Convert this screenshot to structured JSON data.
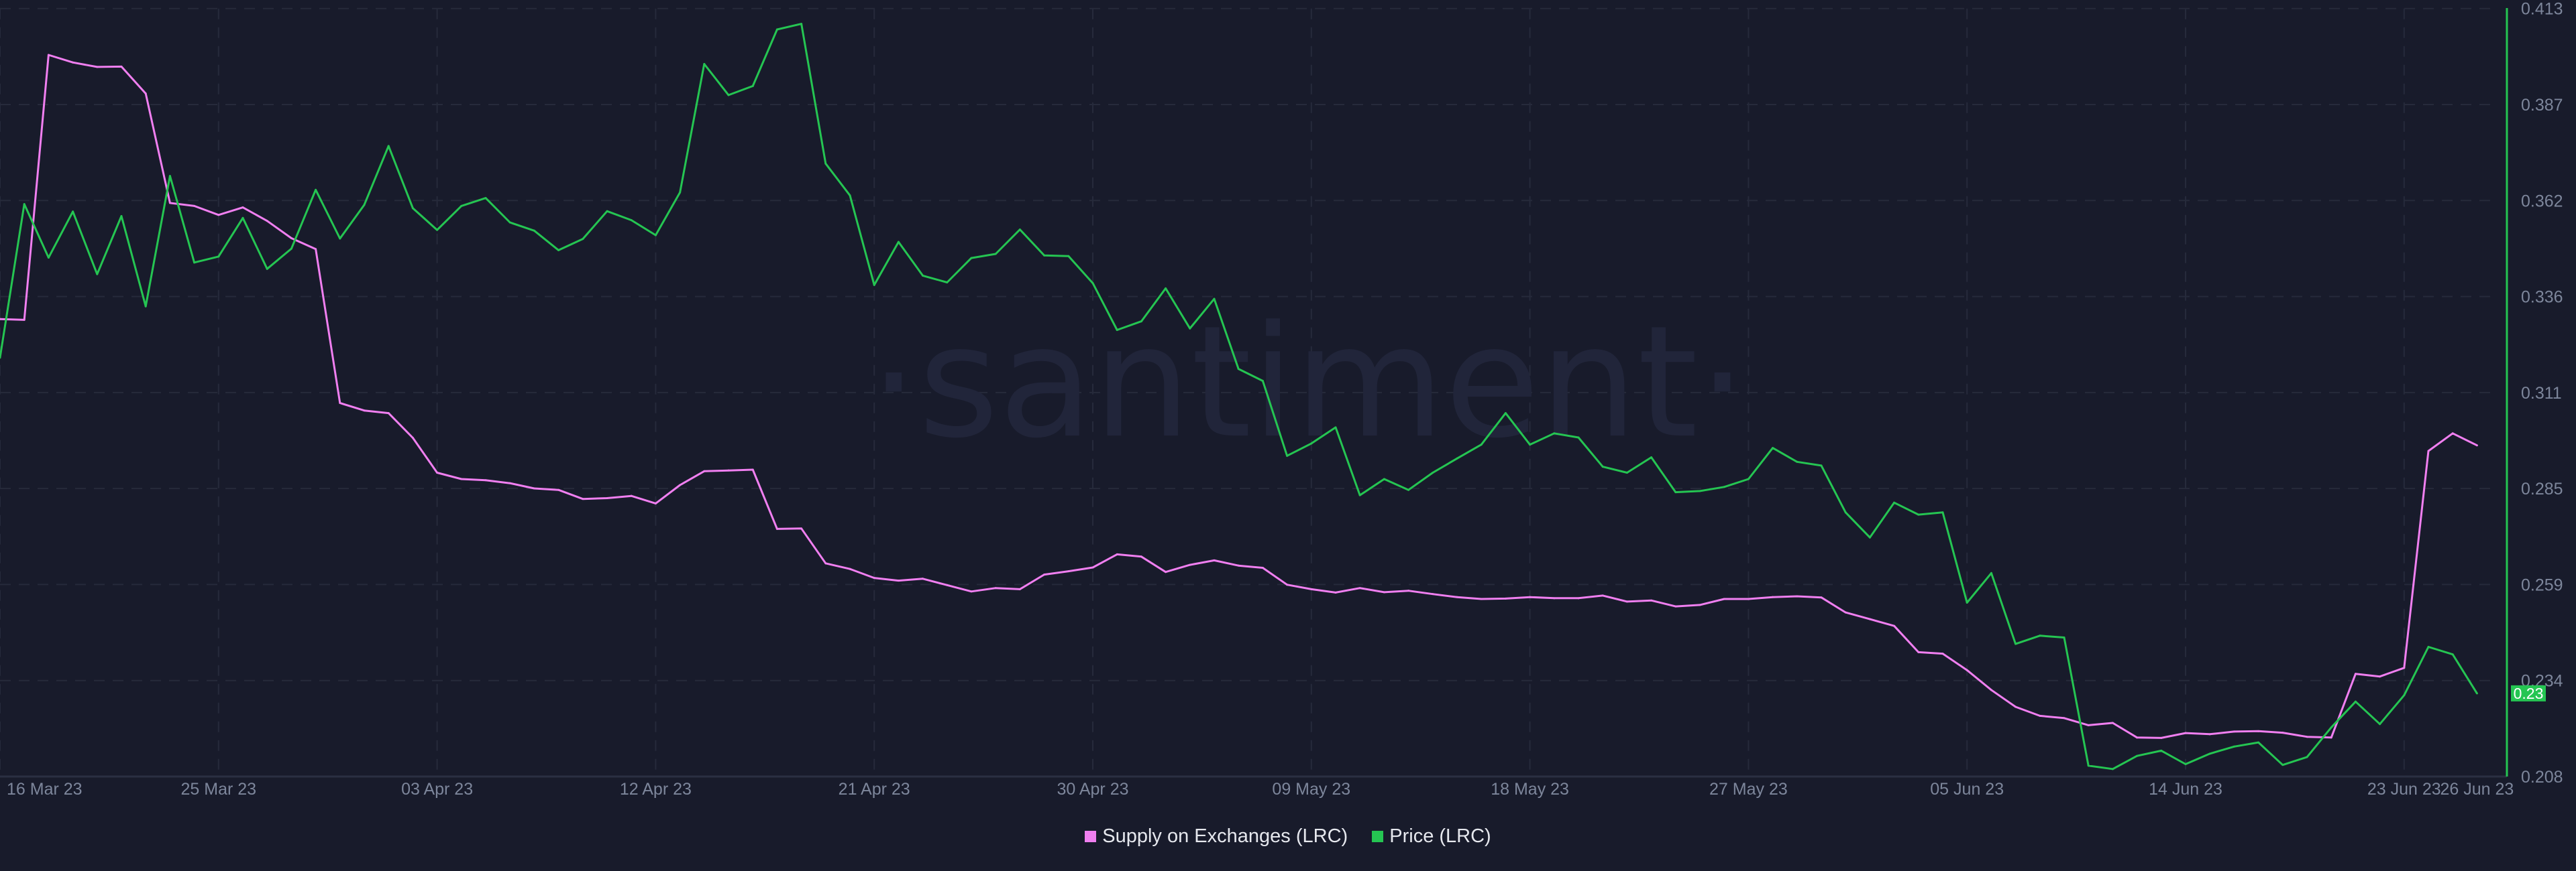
{
  "watermark": "·santiment·",
  "legend": [
    {
      "label": "Supply on Exchanges (LRC)",
      "color": "#f07ff0"
    },
    {
      "label": "Price (LRC)",
      "color": "#25c552"
    }
  ],
  "price_tag": "0.23",
  "chart_data": {
    "type": "line",
    "title": "",
    "xlabel": "",
    "ylabel": "",
    "ylim": [
      0.208,
      0.413
    ],
    "y_ticks": [
      "0.413",
      "0.387",
      "0.362",
      "0.336",
      "0.311",
      "0.285",
      "0.259",
      "0.234",
      "0.208"
    ],
    "x_ticks": [
      "16 Mar 23",
      "25 Mar 23",
      "03 Apr 23",
      "12 Apr 23",
      "21 Apr 23",
      "30 Apr 23",
      "09 May 23",
      "18 May 23",
      "27 May 23",
      "05 Jun 23",
      "14 Jun 23",
      "23 Jun 23",
      "26 Jun 23"
    ],
    "grid": true,
    "legend_position": "bottom",
    "x": [
      "2023-03-16",
      "2023-03-17",
      "2023-03-18",
      "2023-03-19",
      "2023-03-20",
      "2023-03-21",
      "2023-03-22",
      "2023-03-23",
      "2023-03-24",
      "2023-03-25",
      "2023-03-26",
      "2023-03-27",
      "2023-03-28",
      "2023-03-29",
      "2023-03-30",
      "2023-03-31",
      "2023-04-01",
      "2023-04-02",
      "2023-04-03",
      "2023-04-04",
      "2023-04-05",
      "2023-04-06",
      "2023-04-07",
      "2023-04-08",
      "2023-04-09",
      "2023-04-10",
      "2023-04-11",
      "2023-04-12",
      "2023-04-13",
      "2023-04-14",
      "2023-04-15",
      "2023-04-16",
      "2023-04-17",
      "2023-04-18",
      "2023-04-19",
      "2023-04-20",
      "2023-04-21",
      "2023-04-22",
      "2023-04-23",
      "2023-04-24",
      "2023-04-25",
      "2023-04-26",
      "2023-04-27",
      "2023-04-28",
      "2023-04-29",
      "2023-04-30",
      "2023-05-01",
      "2023-05-02",
      "2023-05-03",
      "2023-05-04",
      "2023-05-05",
      "2023-05-06",
      "2023-05-07",
      "2023-05-08",
      "2023-05-09",
      "2023-05-10",
      "2023-05-11",
      "2023-05-12",
      "2023-05-13",
      "2023-05-14",
      "2023-05-15",
      "2023-05-16",
      "2023-05-17",
      "2023-05-18",
      "2023-05-19",
      "2023-05-20",
      "2023-05-21",
      "2023-05-22",
      "2023-05-23",
      "2023-05-24",
      "2023-05-25",
      "2023-05-26",
      "2023-05-27",
      "2023-05-28",
      "2023-05-29",
      "2023-05-30",
      "2023-05-31",
      "2023-06-01",
      "2023-06-02",
      "2023-06-03",
      "2023-06-04",
      "2023-06-05",
      "2023-06-06",
      "2023-06-07",
      "2023-06-08",
      "2023-06-09",
      "2023-06-10",
      "2023-06-11",
      "2023-06-12",
      "2023-06-13",
      "2023-06-14",
      "2023-06-15",
      "2023-06-16",
      "2023-06-17",
      "2023-06-18",
      "2023-06-19",
      "2023-06-20",
      "2023-06-21",
      "2023-06-22",
      "2023-06-23",
      "2023-06-24",
      "2023-06-25",
      "2023-06-26"
    ],
    "series": [
      {
        "name": "Supply on Exchanges (LRC)",
        "color": "#f07ff0",
        "values": [
          0.3301,
          0.3299,
          0.4006,
          0.3986,
          0.3974,
          0.3975,
          0.3903,
          0.3611,
          0.3603,
          0.3579,
          0.3599,
          0.3563,
          0.3517,
          0.3488,
          0.3077,
          0.3057,
          0.305,
          0.2984,
          0.2891,
          0.2874,
          0.2871,
          0.2863,
          0.2849,
          0.2845,
          0.2821,
          0.2823,
          0.2829,
          0.2809,
          0.2858,
          0.2895,
          0.2897,
          0.2899,
          0.2741,
          0.2742,
          0.2649,
          0.2634,
          0.261,
          0.2603,
          0.2608,
          0.2591,
          0.2574,
          0.2583,
          0.258,
          0.2619,
          0.2628,
          0.2638,
          0.2673,
          0.2667,
          0.2626,
          0.2645,
          0.2657,
          0.2643,
          0.2637,
          0.2592,
          0.258,
          0.2571,
          0.2583,
          0.2572,
          0.2576,
          0.2567,
          0.2559,
          0.2554,
          0.2555,
          0.2559,
          0.2556,
          0.2556,
          0.2563,
          0.2547,
          0.255,
          0.2534,
          0.2538,
          0.2554,
          0.2554,
          0.2559,
          0.2561,
          0.2558,
          0.2518,
          0.25,
          0.2482,
          0.2412,
          0.2408,
          0.2364,
          0.2311,
          0.2266,
          0.2242,
          0.2236,
          0.2217,
          0.2223,
          0.2184,
          0.2183,
          0.2196,
          0.2193,
          0.22,
          0.2201,
          0.2197,
          0.2186,
          0.2184,
          0.2354,
          0.2347,
          0.237,
          0.2949,
          0.2996,
          0.2964
        ]
      },
      {
        "name": "Price (LRC)",
        "color": "#25c552",
        "values": [
          0.3198,
          0.3608,
          0.3465,
          0.3588,
          0.3421,
          0.3576,
          0.3335,
          0.3683,
          0.3452,
          0.3468,
          0.3571,
          0.3435,
          0.3489,
          0.3646,
          0.3516,
          0.3606,
          0.3763,
          0.3597,
          0.3539,
          0.3603,
          0.3624,
          0.3559,
          0.3537,
          0.3485,
          0.3515,
          0.3589,
          0.3565,
          0.3525,
          0.3639,
          0.3982,
          0.3899,
          0.3923,
          0.4074,
          0.4089,
          0.3716,
          0.3631,
          0.3392,
          0.3507,
          0.3417,
          0.3399,
          0.3464,
          0.3475,
          0.354,
          0.3471,
          0.3469,
          0.3397,
          0.3272,
          0.3295,
          0.3383,
          0.3276,
          0.3355,
          0.3168,
          0.3136,
          0.2936,
          0.2969,
          0.3012,
          0.2831,
          0.2874,
          0.2845,
          0.2891,
          0.2929,
          0.2966,
          0.305,
          0.2966,
          0.2996,
          0.2985,
          0.2907,
          0.2891,
          0.2932,
          0.2839,
          0.2842,
          0.2853,
          0.2874,
          0.2957,
          0.292,
          0.291,
          0.2785,
          0.2718,
          0.2811,
          0.2779,
          0.2785,
          0.2544,
          0.2623,
          0.2434,
          0.2456,
          0.2451,
          0.2109,
          0.21,
          0.2135,
          0.2149,
          0.2113,
          0.2141,
          0.216,
          0.2171,
          0.2111,
          0.2132,
          0.2211,
          0.228,
          0.222,
          0.2297,
          0.2426,
          0.2406,
          0.2302
        ]
      }
    ]
  }
}
